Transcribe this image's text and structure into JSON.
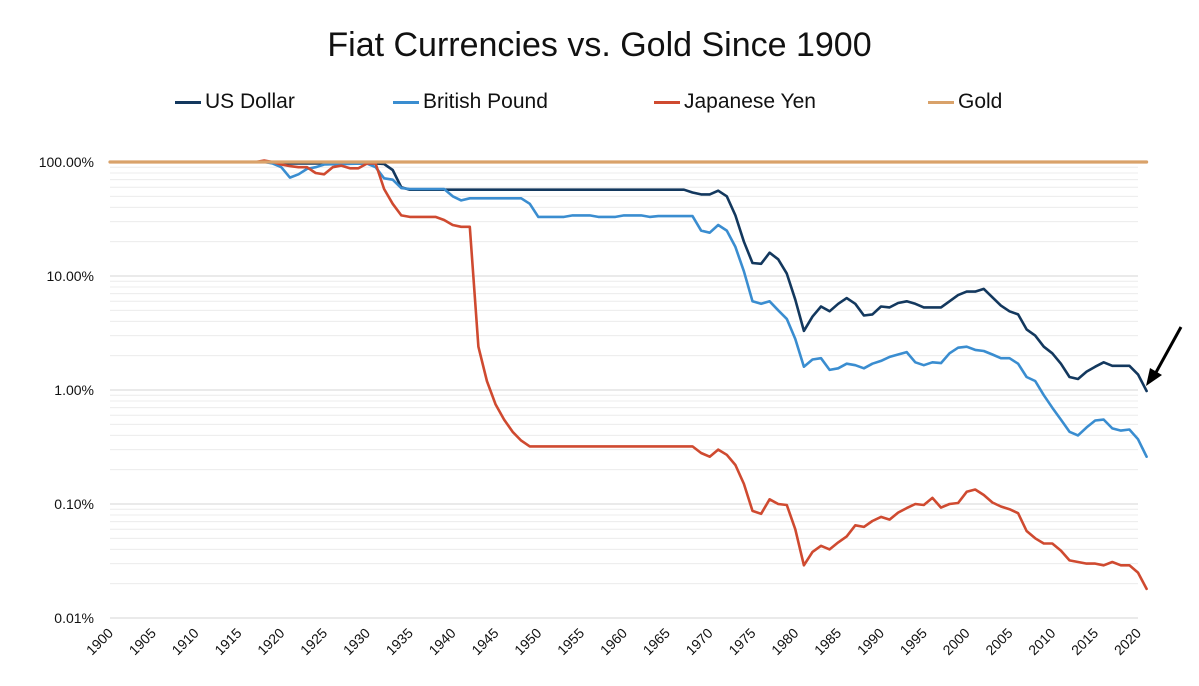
{
  "chart_data": {
    "type": "line",
    "title": "Fiat Currencies vs. Gold Since 1900",
    "xlabel": "",
    "ylabel": "",
    "scale_y": "log",
    "ylim": [
      0.0001,
      1
    ],
    "xlim": [
      1900,
      2020
    ],
    "grid": true,
    "legend_position": "top",
    "y_ticks": [
      {
        "value": 1,
        "label": "100.00%"
      },
      {
        "value": 0.1,
        "label": "10.00%"
      },
      {
        "value": 0.01,
        "label": "1.00%"
      },
      {
        "value": 0.001,
        "label": "0.10%"
      },
      {
        "value": 0.0001,
        "label": "0.01%"
      }
    ],
    "x_ticks": [
      1900,
      1905,
      1910,
      1915,
      1920,
      1925,
      1930,
      1935,
      1940,
      1945,
      1950,
      1955,
      1960,
      1965,
      1970,
      1975,
      1980,
      1985,
      1990,
      1995,
      2000,
      2005,
      2010,
      2015,
      2020
    ],
    "series": [
      {
        "name": "US Dollar",
        "color": "#13385e",
        "points": [
          [
            1900,
            1
          ],
          [
            1918,
            1
          ],
          [
            1920,
            0.97
          ],
          [
            1931,
            0.97
          ],
          [
            1932,
            0.96
          ],
          [
            1933,
            0.85
          ],
          [
            1934,
            0.6
          ],
          [
            1935,
            0.571
          ],
          [
            1967,
            0.571
          ],
          [
            1968,
            0.54
          ],
          [
            1969,
            0.52
          ],
          [
            1970,
            0.52
          ],
          [
            1971,
            0.56
          ],
          [
            1972,
            0.5
          ],
          [
            1973,
            0.34
          ],
          [
            1974,
            0.2
          ],
          [
            1975,
            0.13
          ],
          [
            1976,
            0.128
          ],
          [
            1977,
            0.16
          ],
          [
            1978,
            0.14
          ],
          [
            1979,
            0.105
          ],
          [
            1980,
            0.062
          ],
          [
            1981,
            0.033
          ],
          [
            1982,
            0.044
          ],
          [
            1983,
            0.054
          ],
          [
            1984,
            0.049
          ],
          [
            1985,
            0.057
          ],
          [
            1986,
            0.064
          ],
          [
            1987,
            0.057
          ],
          [
            1988,
            0.045
          ],
          [
            1989,
            0.046
          ],
          [
            1990,
            0.054
          ],
          [
            1991,
            0.053
          ],
          [
            1992,
            0.058
          ],
          [
            1993,
            0.06
          ],
          [
            1994,
            0.057
          ],
          [
            1995,
            0.053
          ],
          [
            1996,
            0.053
          ],
          [
            1997,
            0.053
          ],
          [
            1998,
            0.06
          ],
          [
            1999,
            0.068
          ],
          [
            2000,
            0.073
          ],
          [
            2001,
            0.073
          ],
          [
            2002,
            0.077
          ],
          [
            2003,
            0.065
          ],
          [
            2004,
            0.055
          ],
          [
            2005,
            0.049
          ],
          [
            2006,
            0.046
          ],
          [
            2007,
            0.034
          ],
          [
            2008,
            0.03
          ],
          [
            2009,
            0.024
          ],
          [
            2010,
            0.021
          ],
          [
            2011,
            0.017
          ],
          [
            2012,
            0.013
          ],
          [
            2013,
            0.0125
          ],
          [
            2014,
            0.0145
          ],
          [
            2015,
            0.016
          ],
          [
            2016,
            0.0175
          ],
          [
            2017,
            0.0163
          ],
          [
            2018,
            0.0163
          ],
          [
            2019,
            0.0163
          ],
          [
            2020,
            0.0137
          ],
          [
            2021,
            0.0098
          ]
        ]
      },
      {
        "name": "British Pound",
        "color": "#3a8dd0",
        "points": [
          [
            1900,
            1
          ],
          [
            1918,
            1
          ],
          [
            1919,
            0.97
          ],
          [
            1920,
            0.9
          ],
          [
            1921,
            0.73
          ],
          [
            1922,
            0.78
          ],
          [
            1923,
            0.87
          ],
          [
            1924,
            0.9
          ],
          [
            1925,
            0.95
          ],
          [
            1930,
            0.97
          ],
          [
            1931,
            0.9
          ],
          [
            1932,
            0.72
          ],
          [
            1933,
            0.7
          ],
          [
            1934,
            0.59
          ],
          [
            1935,
            0.58
          ],
          [
            1939,
            0.58
          ],
          [
            1940,
            0.5
          ],
          [
            1941,
            0.46
          ],
          [
            1942,
            0.48
          ],
          [
            1948,
            0.48
          ],
          [
            1949,
            0.43
          ],
          [
            1950,
            0.33
          ],
          [
            1953,
            0.33
          ],
          [
            1954,
            0.34
          ],
          [
            1956,
            0.34
          ],
          [
            1957,
            0.33
          ],
          [
            1959,
            0.33
          ],
          [
            1960,
            0.34
          ],
          [
            1962,
            0.34
          ],
          [
            1963,
            0.33
          ],
          [
            1964,
            0.335
          ],
          [
            1968,
            0.335
          ],
          [
            1969,
            0.25
          ],
          [
            1970,
            0.24
          ],
          [
            1971,
            0.28
          ],
          [
            1972,
            0.25
          ],
          [
            1973,
            0.18
          ],
          [
            1974,
            0.11
          ],
          [
            1975,
            0.06
          ],
          [
            1976,
            0.057
          ],
          [
            1977,
            0.06
          ],
          [
            1978,
            0.05
          ],
          [
            1979,
            0.042
          ],
          [
            1980,
            0.028
          ],
          [
            1981,
            0.016
          ],
          [
            1982,
            0.0185
          ],
          [
            1983,
            0.019
          ],
          [
            1984,
            0.015
          ],
          [
            1985,
            0.0155
          ],
          [
            1986,
            0.017
          ],
          [
            1987,
            0.0165
          ],
          [
            1988,
            0.0155
          ],
          [
            1989,
            0.017
          ],
          [
            1990,
            0.018
          ],
          [
            1991,
            0.0195
          ],
          [
            1992,
            0.0205
          ],
          [
            1993,
            0.0215
          ],
          [
            1994,
            0.0175
          ],
          [
            1995,
            0.0165
          ],
          [
            1996,
            0.0175
          ],
          [
            1997,
            0.0172
          ],
          [
            1998,
            0.021
          ],
          [
            1999,
            0.0235
          ],
          [
            2000,
            0.024
          ],
          [
            2001,
            0.0225
          ],
          [
            2002,
            0.022
          ],
          [
            2003,
            0.0205
          ],
          [
            2004,
            0.019
          ],
          [
            2005,
            0.019
          ],
          [
            2006,
            0.017
          ],
          [
            2007,
            0.013
          ],
          [
            2008,
            0.012
          ],
          [
            2009,
            0.009
          ],
          [
            2010,
            0.007
          ],
          [
            2011,
            0.0055
          ],
          [
            2012,
            0.0043
          ],
          [
            2013,
            0.004
          ],
          [
            2014,
            0.0047
          ],
          [
            2015,
            0.0054
          ],
          [
            2016,
            0.0055
          ],
          [
            2017,
            0.0046
          ],
          [
            2018,
            0.0044
          ],
          [
            2019,
            0.0045
          ],
          [
            2020,
            0.0037
          ],
          [
            2021,
            0.0026
          ]
        ]
      },
      {
        "name": "Japanese Yen",
        "color": "#cf4a30",
        "points": [
          [
            1900,
            1
          ],
          [
            1917,
            1
          ],
          [
            1918,
            1.03
          ],
          [
            1919,
            1
          ],
          [
            1920,
            0.95
          ],
          [
            1921,
            0.92
          ],
          [
            1922,
            0.9
          ],
          [
            1923,
            0.9
          ],
          [
            1924,
            0.8
          ],
          [
            1925,
            0.78
          ],
          [
            1926,
            0.9
          ],
          [
            1927,
            0.93
          ],
          [
            1928,
            0.88
          ],
          [
            1929,
            0.88
          ],
          [
            1930,
            0.97
          ],
          [
            1931,
            0.97
          ],
          [
            1932,
            0.58
          ],
          [
            1933,
            0.43
          ],
          [
            1934,
            0.34
          ],
          [
            1935,
            0.33
          ],
          [
            1938,
            0.33
          ],
          [
            1939,
            0.31
          ],
          [
            1940,
            0.28
          ],
          [
            1941,
            0.27
          ],
          [
            1942,
            0.27
          ],
          [
            1943,
            0.024
          ],
          [
            1944,
            0.012
          ],
          [
            1945,
            0.0075
          ],
          [
            1946,
            0.0055
          ],
          [
            1947,
            0.0043
          ],
          [
            1948,
            0.0036
          ],
          [
            1949,
            0.0032
          ],
          [
            1950,
            0.0032
          ],
          [
            1968,
            0.0032
          ],
          [
            1969,
            0.0028
          ],
          [
            1970,
            0.0026
          ],
          [
            1971,
            0.003
          ],
          [
            1972,
            0.0027
          ],
          [
            1973,
            0.0022
          ],
          [
            1974,
            0.0015
          ],
          [
            1975,
            0.00087
          ],
          [
            1976,
            0.00082
          ],
          [
            1977,
            0.0011
          ],
          [
            1978,
            0.001
          ],
          [
            1979,
            0.00098
          ],
          [
            1980,
            0.0006
          ],
          [
            1981,
            0.00029
          ],
          [
            1982,
            0.00038
          ],
          [
            1983,
            0.00043
          ],
          [
            1984,
            0.0004
          ],
          [
            1985,
            0.00046
          ],
          [
            1986,
            0.00052
          ],
          [
            1987,
            0.00065
          ],
          [
            1988,
            0.00063
          ],
          [
            1989,
            0.00071
          ],
          [
            1990,
            0.00077
          ],
          [
            1991,
            0.00073
          ],
          [
            1992,
            0.00084
          ],
          [
            1993,
            0.00092
          ],
          [
            1994,
            0.001
          ],
          [
            1995,
            0.00098
          ],
          [
            1996,
            0.00113
          ],
          [
            1997,
            0.00093
          ],
          [
            1998,
            0.001
          ],
          [
            1999,
            0.00102
          ],
          [
            2000,
            0.00128
          ],
          [
            2001,
            0.00134
          ],
          [
            2002,
            0.0012
          ],
          [
            2003,
            0.00103
          ],
          [
            2004,
            0.00095
          ],
          [
            2005,
            0.0009
          ],
          [
            2006,
            0.00083
          ],
          [
            2007,
            0.00058
          ],
          [
            2008,
            0.0005
          ],
          [
            2009,
            0.00045
          ],
          [
            2010,
            0.00045
          ],
          [
            2011,
            0.00039
          ],
          [
            2012,
            0.00032
          ],
          [
            2013,
            0.00031
          ],
          [
            2014,
            0.0003
          ],
          [
            2015,
            0.0003
          ],
          [
            2016,
            0.00029
          ],
          [
            2017,
            0.00031
          ],
          [
            2018,
            0.00029
          ],
          [
            2019,
            0.00029
          ],
          [
            2020,
            0.00025
          ],
          [
            2021,
            0.00018
          ]
        ]
      },
      {
        "name": "Gold",
        "color": "#d9a26a",
        "points": [
          [
            1900,
            1
          ],
          [
            2021,
            1
          ]
        ]
      }
    ]
  }
}
